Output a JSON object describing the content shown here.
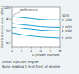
{
  "chart_data": {
    "type": "line",
    "y_label": "Emitted noise level dB(A)",
    "x_label": "Cylinder number",
    "annotations": [
      "Reference"
    ],
    "legend_title": "rpm",
    "caption": [
      "Diesel injection engine",
      "Noise reading 1 m in front of engine"
    ],
    "x": [
      1,
      2,
      3,
      4,
      5,
      6
    ],
    "xlim": [
      1,
      6
    ],
    "xticks": [
      1,
      2,
      3,
      4,
      5,
      6
    ],
    "ylim": [
      83,
      100
    ],
    "yticks": [
      85,
      90,
      95,
      100
    ],
    "grid": false,
    "series": [
      {
        "name": "2 600",
        "color": "#1a9fd0",
        "values": [
          96,
          95.6,
          95.2,
          94.8,
          94.6,
          94.6
        ]
      },
      {
        "name": "2 000",
        "color": "#1a9fd0",
        "values": [
          93,
          92.6,
          92.2,
          91.8,
          91.6,
          91.5
        ]
      },
      {
        "name": "1 800",
        "color": "#1a9fd0",
        "values": [
          91.5,
          91,
          90.6,
          90.2,
          90,
          89.9
        ]
      },
      {
        "name": "1 400",
        "color": "#1a9fd0",
        "values": [
          89,
          88.3,
          87.8,
          87.4,
          87.2,
          87
        ]
      }
    ]
  }
}
